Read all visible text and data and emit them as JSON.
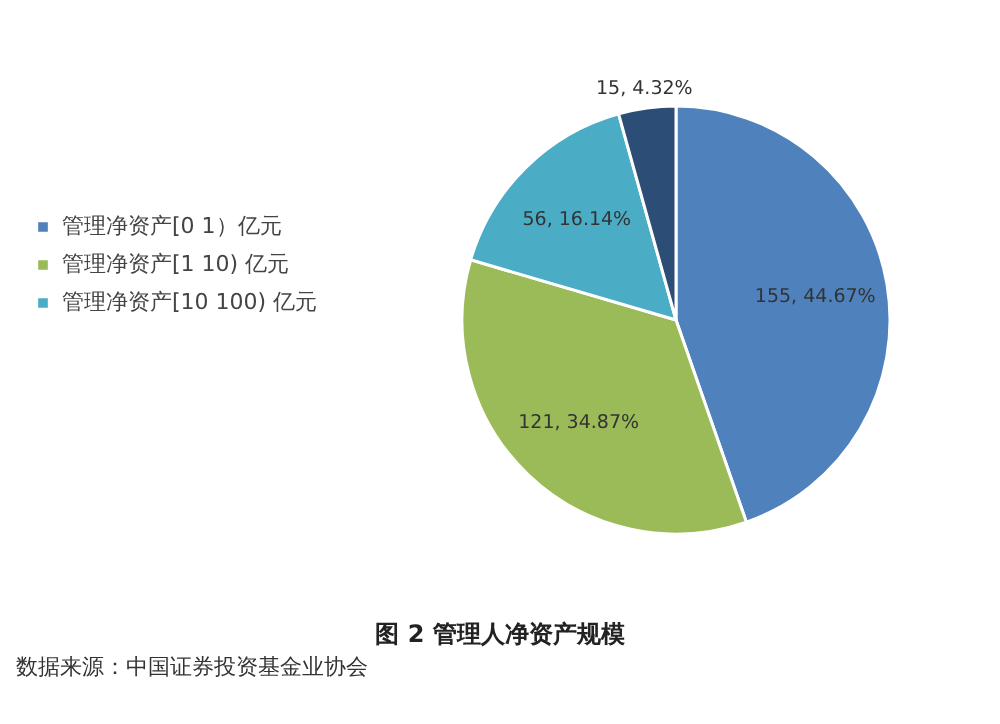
{
  "chart_data": {
    "type": "pie",
    "title": "图 2 管理人净资产规模",
    "categories": [
      "管理净资产[0 1）亿元",
      "管理净资产[1 10) 亿元",
      "管理净资产[10 100) 亿元",
      null
    ],
    "values": [
      155,
      121,
      56,
      15
    ],
    "colors": [
      "#4f81bd",
      "#9bbb59",
      "#4bacc6",
      "#2c4d75"
    ],
    "value_labels": [
      "155, 44.67%",
      "121, 34.87%",
      "56, 16.14%",
      "15, 4.32%"
    ],
    "legend": "left",
    "annotations": [
      "数据来源：中国证券投资基金业协会"
    ]
  }
}
